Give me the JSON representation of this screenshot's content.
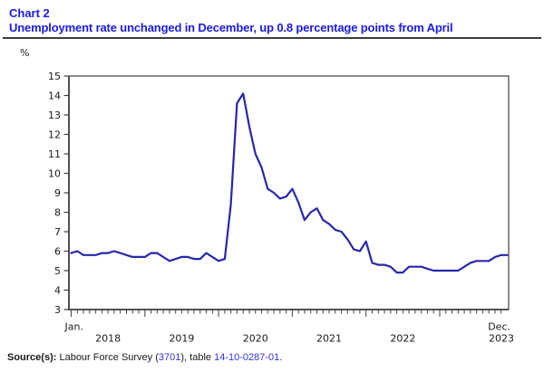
{
  "header": {
    "chart_label": "Chart 2",
    "title": "Unemployment rate unchanged in December, up 0.8 percentage points from April"
  },
  "chart_data": {
    "type": "line",
    "title": "Unemployment rate unchanged in December, up 0.8 percentage points from April",
    "unit_label": "%",
    "ylabel": "%",
    "xlabel": "",
    "ylim": [
      3,
      15
    ],
    "y_ticks": [
      3,
      4,
      5,
      6,
      7,
      8,
      9,
      10,
      11,
      12,
      13,
      14,
      15
    ],
    "x_start_label": "Jan.",
    "x_end_label": "Dec.",
    "years": [
      "2018",
      "2019",
      "2020",
      "2021",
      "2022",
      "2023"
    ],
    "months_per_year": 12,
    "grid": "off",
    "legend": "none",
    "series": [
      {
        "name": "Unemployment rate",
        "values": [
          5.9,
          6.0,
          5.8,
          5.8,
          5.8,
          5.9,
          5.9,
          6.0,
          5.9,
          5.8,
          5.7,
          5.7,
          5.7,
          5.9,
          5.9,
          5.7,
          5.5,
          5.6,
          5.7,
          5.7,
          5.6,
          5.6,
          5.9,
          5.7,
          5.5,
          5.6,
          8.4,
          13.6,
          14.1,
          12.4,
          11.0,
          10.3,
          9.2,
          9.0,
          8.7,
          8.8,
          9.2,
          8.5,
          7.6,
          8.0,
          8.2,
          7.6,
          7.4,
          7.1,
          7.0,
          6.6,
          6.1,
          6.0,
          6.5,
          5.4,
          5.3,
          5.3,
          5.2,
          4.9,
          4.9,
          5.2,
          5.2,
          5.2,
          5.1,
          5.0,
          5.0,
          5.0,
          5.0,
          5.0,
          5.2,
          5.4,
          5.5,
          5.5,
          5.5,
          5.7,
          5.8,
          5.8
        ]
      }
    ],
    "line_color": "#2727AB",
    "axis_color": "#404040",
    "tick_label_color": "#1a1a1a"
  },
  "source": {
    "prefix_bold": "Source(s):",
    "text_1": " Labour Force Survey (",
    "link_1": "3701",
    "text_2": "), table ",
    "link_2": "14-10-0287-01",
    "text_3": "."
  },
  "colors": {
    "title": "#1A1AE8",
    "link": "#3333E6",
    "line": "#2727AB",
    "axis": "#404040"
  }
}
